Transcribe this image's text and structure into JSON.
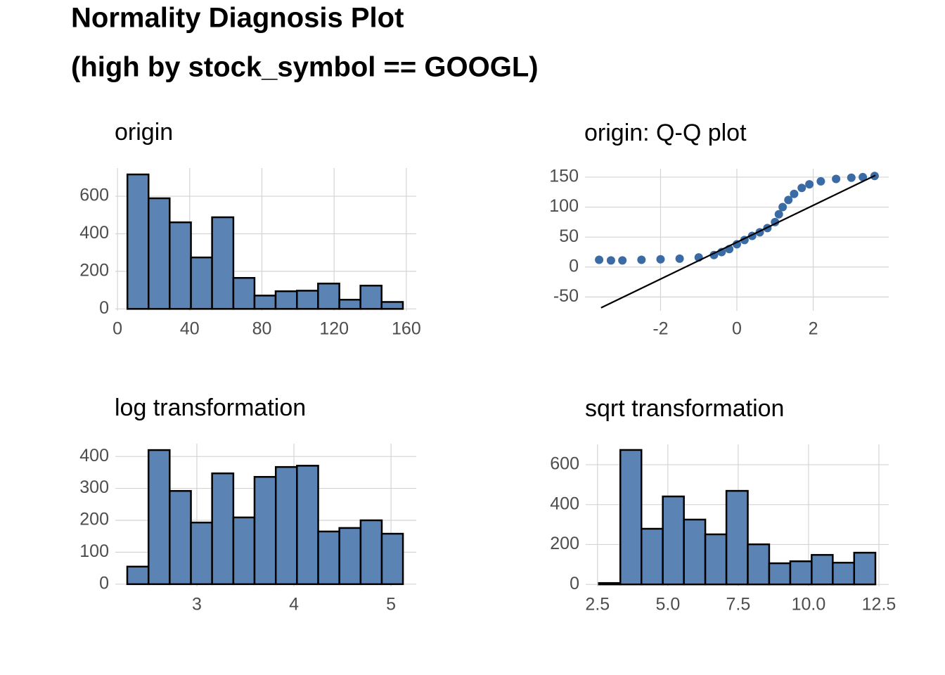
{
  "title": [
    "Normality Diagnosis Plot",
    "(high by stock_symbol == GOOGL)"
  ],
  "chart_data": [
    {
      "type": "histogram",
      "title": "origin",
      "color": "#5b84b5",
      "grid": true,
      "bins": [
        5.5,
        17.2,
        28.9,
        40.7,
        52.4,
        64.2,
        75.9,
        87.6,
        99.4,
        111.1,
        122.9,
        134.6,
        146.3,
        158.1
      ],
      "values": [
        716,
        589,
        461,
        274,
        488,
        165,
        71,
        94,
        97,
        135,
        49,
        124,
        37
      ],
      "xlim": [
        -1.2,
        165.5
      ],
      "xticks": [
        0,
        40,
        80,
        120,
        160
      ],
      "ylim": [
        -10,
        750
      ],
      "yticks": [
        0,
        200,
        400,
        600
      ]
    },
    {
      "type": "scatter",
      "title": "origin: Q-Q plot",
      "color": "#3a6ba5",
      "grid": true,
      "x": [
        -3.61,
        -3.3,
        -3.0,
        -2.5,
        -2.0,
        -1.5,
        -1.0,
        -0.6,
        -0.4,
        -0.2,
        0.0,
        0.2,
        0.4,
        0.6,
        0.8,
        1.0,
        1.1,
        1.2,
        1.35,
        1.5,
        1.7,
        1.9,
        2.2,
        2.6,
        3.0,
        3.3,
        3.61
      ],
      "values": [
        12,
        11,
        11,
        12,
        13,
        14,
        16,
        20,
        25,
        30,
        38,
        45,
        52,
        58,
        65,
        75,
        88,
        100,
        112,
        122,
        132,
        138,
        143,
        147,
        149,
        150,
        152
      ],
      "line": {
        "x": [
          -3.56,
          3.63
        ],
        "values": [
          -68,
          153
        ]
      },
      "xlim": [
        -3.98,
        3.98
      ],
      "xticks": [
        -2,
        0,
        2
      ],
      "ylim": [
        -73,
        164
      ],
      "yticks": [
        -50,
        0,
        50,
        100,
        150
      ]
    },
    {
      "type": "histogram",
      "title": "log transformation",
      "color": "#5b84b5",
      "grid": true,
      "bins": [
        2.283,
        2.502,
        2.72,
        2.939,
        3.157,
        3.376,
        3.594,
        3.813,
        4.031,
        4.25,
        4.468,
        4.687,
        4.905,
        5.123
      ],
      "values": [
        55,
        420,
        292,
        193,
        347,
        209,
        336,
        367,
        371,
        165,
        176,
        200,
        158
      ],
      "xlim": [
        2.16,
        5.26
      ],
      "xticks": [
        3,
        4,
        5
      ],
      "ylim": [
        -7,
        440
      ],
      "yticks": [
        0,
        100,
        200,
        300,
        400
      ]
    },
    {
      "type": "histogram",
      "title": "sqrt transformation",
      "color": "#5b84b5",
      "grid": true,
      "bins": [
        2.55,
        3.31,
        4.06,
        4.82,
        5.57,
        6.33,
        7.08,
        7.84,
        8.6,
        9.35,
        10.11,
        10.86,
        11.62,
        12.375
      ],
      "values": [
        7,
        674,
        279,
        441,
        325,
        251,
        469,
        201,
        106,
        116,
        148,
        109,
        159
      ],
      "xlim": [
        2.08,
        12.85
      ],
      "xticks": [
        2.5,
        {
          "value": 5,
          "label": "5.0"
        },
        7.5,
        {
          "value": 10,
          "label": "10.0"
        },
        12.5
      ],
      "ylim": [
        -10,
        702
      ],
      "yticks": [
        0,
        200,
        400,
        600
      ]
    }
  ]
}
